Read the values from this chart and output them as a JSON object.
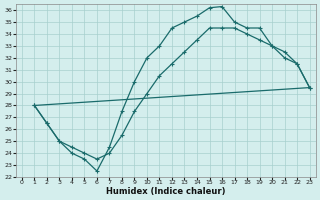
{
  "title": "",
  "xlabel": "Humidex (Indice chaleur)",
  "bg_color": "#d4eeed",
  "grid_color": "#a8d0ce",
  "line_color": "#1a6b6b",
  "xlim": [
    -0.5,
    23.5
  ],
  "ylim": [
    22,
    36.5
  ],
  "xticks": [
    0,
    1,
    2,
    3,
    4,
    5,
    6,
    7,
    8,
    9,
    10,
    11,
    12,
    13,
    14,
    15,
    16,
    17,
    18,
    19,
    20,
    21,
    22,
    23
  ],
  "yticks": [
    22,
    23,
    24,
    25,
    26,
    27,
    28,
    29,
    30,
    31,
    32,
    33,
    34,
    35,
    36
  ],
  "line1_x": [
    1,
    2,
    3,
    4,
    5,
    6,
    7,
    8,
    9,
    10,
    11,
    12,
    13,
    14,
    15,
    16,
    17,
    18,
    19,
    20,
    21,
    22,
    23
  ],
  "line1_y": [
    28.0,
    26.5,
    25.0,
    24.0,
    23.5,
    22.5,
    24.5,
    27.5,
    30.0,
    32.0,
    33.0,
    34.5,
    35.0,
    35.5,
    36.2,
    36.3,
    35.0,
    34.5,
    34.5,
    33.0,
    32.0,
    31.5,
    29.5
  ],
  "line2_x": [
    1,
    2,
    3,
    4,
    5,
    6,
    7,
    8,
    9,
    10,
    11,
    12,
    13,
    14,
    15,
    16,
    17,
    18,
    19,
    20,
    21,
    22,
    23
  ],
  "line2_y": [
    28.0,
    26.5,
    25.0,
    24.5,
    24.0,
    23.5,
    24.0,
    25.5,
    27.5,
    29.0,
    30.5,
    31.5,
    32.5,
    33.5,
    34.5,
    34.5,
    34.5,
    34.0,
    33.5,
    33.0,
    32.5,
    31.5,
    29.5
  ],
  "line3_x": [
    1,
    23
  ],
  "line3_y": [
    28.0,
    29.5
  ]
}
